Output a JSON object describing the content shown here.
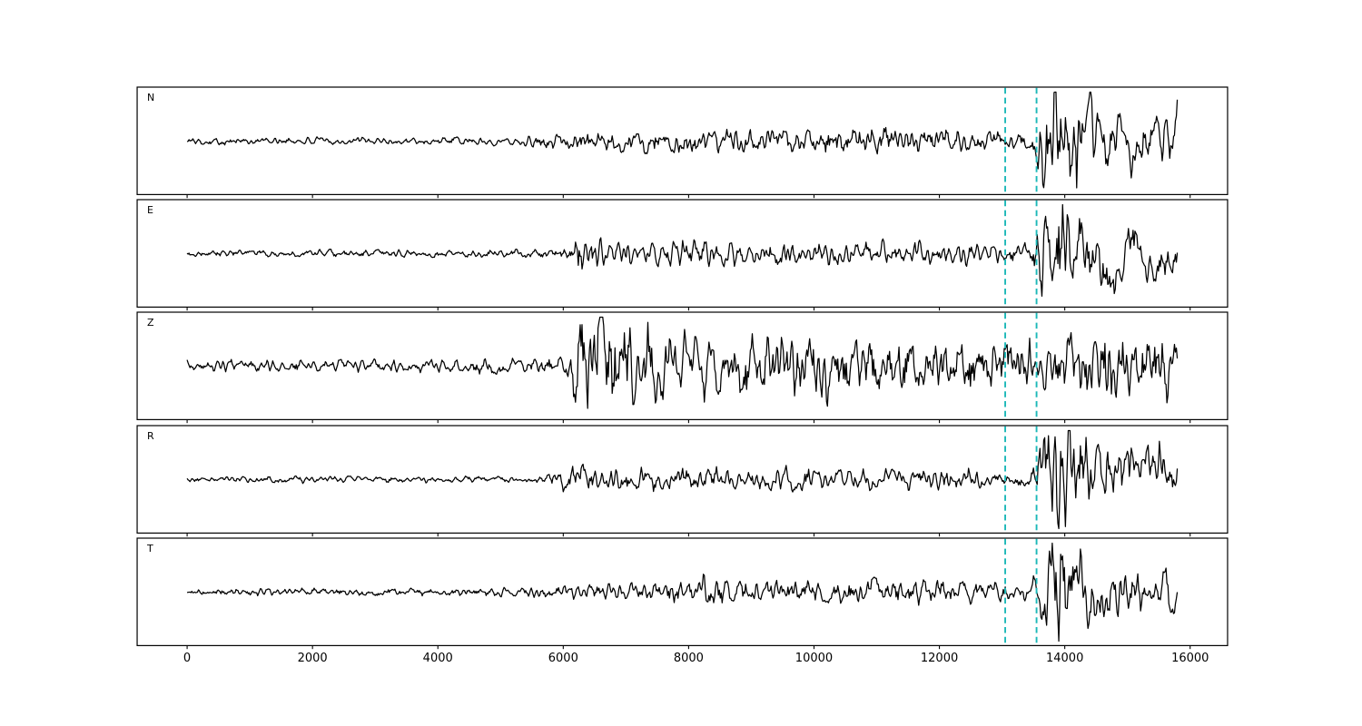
{
  "figure": {
    "background": "#ffffff",
    "title": ""
  },
  "chart_data": {
    "type": "line",
    "subtype": "seismogram-multipanel",
    "title": "",
    "xlabel": "",
    "ylabel": "",
    "grid": false,
    "legend": null,
    "line_color": "#000000",
    "background": "#ffffff",
    "x": {
      "axis_min": -790,
      "axis_max": 16590,
      "data_start": 0,
      "data_end": 15800,
      "ticks": [
        0,
        2000,
        4000,
        6000,
        8000,
        10000,
        12000,
        14000,
        16000
      ]
    },
    "y": {
      "ticks": []
    },
    "pick_lines": {
      "positions": [
        13050,
        13550
      ],
      "color": "#1cb8b8",
      "style": "dashed"
    },
    "sample_step": 15,
    "amplitude_units": "px",
    "channels": [
      {
        "label": "N",
        "seed": 101,
        "env_hf": [
          [
            0,
            2.5
          ],
          [
            5200,
            3
          ],
          [
            6100,
            6.5
          ],
          [
            7200,
            9
          ],
          [
            9500,
            10
          ],
          [
            12600,
            9
          ],
          [
            13050,
            6
          ],
          [
            13450,
            6
          ],
          [
            13600,
            30
          ],
          [
            13850,
            48
          ],
          [
            14150,
            40
          ],
          [
            14550,
            20
          ],
          [
            15100,
            16
          ],
          [
            15800,
            14
          ]
        ],
        "env_lf": [
          [
            0,
            0
          ],
          [
            13450,
            0
          ],
          [
            13650,
            18
          ],
          [
            14050,
            26
          ],
          [
            14600,
            16
          ],
          [
            15300,
            13
          ],
          [
            15800,
            11
          ]
        ]
      },
      {
        "label": "E",
        "seed": 202,
        "env_hf": [
          [
            0,
            2.3
          ],
          [
            5800,
            2.8
          ],
          [
            6080,
            4
          ],
          [
            6180,
            15
          ],
          [
            6400,
            11
          ],
          [
            7000,
            10
          ],
          [
            9000,
            9
          ],
          [
            12000,
            8
          ],
          [
            13000,
            7
          ],
          [
            13450,
            6
          ],
          [
            13620,
            26
          ],
          [
            13950,
            34
          ],
          [
            14350,
            20
          ],
          [
            15000,
            15
          ],
          [
            15800,
            14
          ]
        ],
        "env_lf": [
          [
            0,
            0
          ],
          [
            13450,
            0
          ],
          [
            13750,
            24
          ],
          [
            14300,
            28
          ],
          [
            15000,
            25
          ],
          [
            15500,
            22
          ],
          [
            15800,
            18
          ]
        ]
      },
      {
        "label": "Z",
        "seed": 303,
        "env_hf": [
          [
            0,
            4.2
          ],
          [
            5400,
            5
          ],
          [
            6050,
            7
          ],
          [
            6220,
            42
          ],
          [
            6500,
            36
          ],
          [
            7200,
            30
          ],
          [
            8500,
            24
          ],
          [
            10000,
            21
          ],
          [
            12500,
            20
          ],
          [
            13600,
            21
          ],
          [
            14300,
            23
          ],
          [
            14650,
            30
          ],
          [
            15200,
            22
          ],
          [
            15800,
            20
          ]
        ],
        "env_lf": [
          [
            0,
            0.5
          ],
          [
            6050,
            0.5
          ],
          [
            6250,
            16
          ],
          [
            7500,
            11
          ],
          [
            9000,
            7
          ],
          [
            13000,
            6
          ],
          [
            14200,
            9
          ],
          [
            15800,
            7
          ]
        ]
      },
      {
        "label": "R",
        "seed": 404,
        "env_hf": [
          [
            0,
            2.2
          ],
          [
            5700,
            2.5
          ],
          [
            6150,
            10
          ],
          [
            6500,
            8
          ],
          [
            8000,
            9
          ],
          [
            10000,
            8
          ],
          [
            12500,
            7
          ],
          [
            13050,
            4.5
          ],
          [
            13450,
            5
          ],
          [
            13620,
            32
          ],
          [
            13900,
            44
          ],
          [
            14250,
            26
          ],
          [
            14800,
            17
          ],
          [
            15400,
            15
          ],
          [
            15800,
            14
          ]
        ],
        "env_lf": [
          [
            0,
            0
          ],
          [
            13450,
            0
          ],
          [
            13750,
            20
          ],
          [
            14250,
            26
          ],
          [
            15000,
            19
          ],
          [
            15800,
            15
          ]
        ]
      },
      {
        "label": "T",
        "seed": 505,
        "env_hf": [
          [
            0,
            2.4
          ],
          [
            5300,
            3.2
          ],
          [
            6500,
            6
          ],
          [
            7800,
            8
          ],
          [
            8250,
            12
          ],
          [
            8600,
            9
          ],
          [
            10500,
            9
          ],
          [
            12800,
            8
          ],
          [
            13400,
            6.5
          ],
          [
            13620,
            28
          ],
          [
            13900,
            46
          ],
          [
            14250,
            24
          ],
          [
            14800,
            15
          ],
          [
            15800,
            13
          ]
        ],
        "env_lf": [
          [
            0,
            0
          ],
          [
            13450,
            0
          ],
          [
            13700,
            16
          ],
          [
            14150,
            20
          ],
          [
            15000,
            13
          ],
          [
            15800,
            11
          ]
        ]
      }
    ]
  }
}
